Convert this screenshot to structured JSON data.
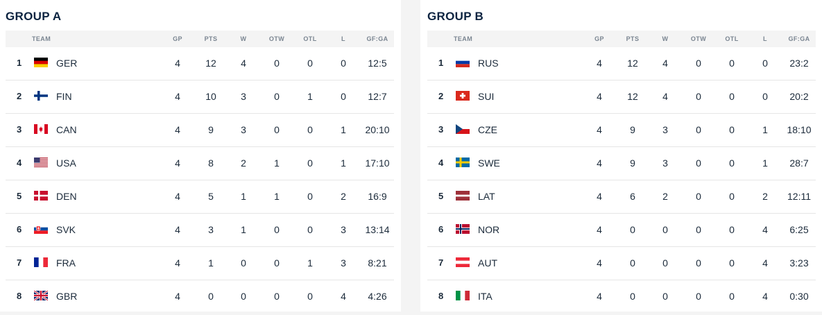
{
  "columns": {
    "team": "TEAM",
    "gp": "GP",
    "pts": "PTS",
    "w": "W",
    "otw": "OTW",
    "otl": "OTL",
    "l": "L",
    "gfga": "GF:GA"
  },
  "groups": [
    {
      "title": "GROUP A",
      "rows": [
        {
          "rank": "1",
          "team": "GER",
          "flag": "ger-flag-icon",
          "gp": "4",
          "pts": "12",
          "w": "4",
          "otw": "0",
          "otl": "0",
          "l": "0",
          "gfga": "12:5"
        },
        {
          "rank": "2",
          "team": "FIN",
          "flag": "fin-flag-icon",
          "gp": "4",
          "pts": "10",
          "w": "3",
          "otw": "0",
          "otl": "1",
          "l": "0",
          "gfga": "12:7"
        },
        {
          "rank": "3",
          "team": "CAN",
          "flag": "can-flag-icon",
          "gp": "4",
          "pts": "9",
          "w": "3",
          "otw": "0",
          "otl": "0",
          "l": "1",
          "gfga": "20:10"
        },
        {
          "rank": "4",
          "team": "USA",
          "flag": "usa-flag-icon",
          "gp": "4",
          "pts": "8",
          "w": "2",
          "otw": "1",
          "otl": "0",
          "l": "1",
          "gfga": "17:10"
        },
        {
          "rank": "5",
          "team": "DEN",
          "flag": "den-flag-icon",
          "gp": "4",
          "pts": "5",
          "w": "1",
          "otw": "1",
          "otl": "0",
          "l": "2",
          "gfga": "16:9"
        },
        {
          "rank": "6",
          "team": "SVK",
          "flag": "svk-flag-icon",
          "gp": "4",
          "pts": "3",
          "w": "1",
          "otw": "0",
          "otl": "0",
          "l": "3",
          "gfga": "13:14"
        },
        {
          "rank": "7",
          "team": "FRA",
          "flag": "fra-flag-icon",
          "gp": "4",
          "pts": "1",
          "w": "0",
          "otw": "0",
          "otl": "1",
          "l": "3",
          "gfga": "8:21"
        },
        {
          "rank": "8",
          "team": "GBR",
          "flag": "gbr-flag-icon",
          "gp": "4",
          "pts": "0",
          "w": "0",
          "otw": "0",
          "otl": "0",
          "l": "4",
          "gfga": "4:26"
        }
      ]
    },
    {
      "title": "GROUP B",
      "rows": [
        {
          "rank": "1",
          "team": "RUS",
          "flag": "rus-flag-icon",
          "gp": "4",
          "pts": "12",
          "w": "4",
          "otw": "0",
          "otl": "0",
          "l": "0",
          "gfga": "23:2"
        },
        {
          "rank": "2",
          "team": "SUI",
          "flag": "sui-flag-icon",
          "gp": "4",
          "pts": "12",
          "w": "4",
          "otw": "0",
          "otl": "0",
          "l": "0",
          "gfga": "20:2"
        },
        {
          "rank": "3",
          "team": "CZE",
          "flag": "cze-flag-icon",
          "gp": "4",
          "pts": "9",
          "w": "3",
          "otw": "0",
          "otl": "0",
          "l": "1",
          "gfga": "18:10"
        },
        {
          "rank": "4",
          "team": "SWE",
          "flag": "swe-flag-icon",
          "gp": "4",
          "pts": "9",
          "w": "3",
          "otw": "0",
          "otl": "0",
          "l": "1",
          "gfga": "28:7"
        },
        {
          "rank": "5",
          "team": "LAT",
          "flag": "lat-flag-icon",
          "gp": "4",
          "pts": "6",
          "w": "2",
          "otw": "0",
          "otl": "0",
          "l": "2",
          "gfga": "12:11"
        },
        {
          "rank": "6",
          "team": "NOR",
          "flag": "nor-flag-icon",
          "gp": "4",
          "pts": "0",
          "w": "0",
          "otw": "0",
          "otl": "0",
          "l": "4",
          "gfga": "6:25"
        },
        {
          "rank": "7",
          "team": "AUT",
          "flag": "aut-flag-icon",
          "gp": "4",
          "pts": "0",
          "w": "0",
          "otw": "0",
          "otl": "0",
          "l": "4",
          "gfga": "3:23"
        },
        {
          "rank": "8",
          "team": "ITA",
          "flag": "ita-flag-icon",
          "gp": "4",
          "pts": "0",
          "w": "0",
          "otw": "0",
          "otl": "0",
          "l": "4",
          "gfga": "0:30"
        }
      ]
    }
  ]
}
